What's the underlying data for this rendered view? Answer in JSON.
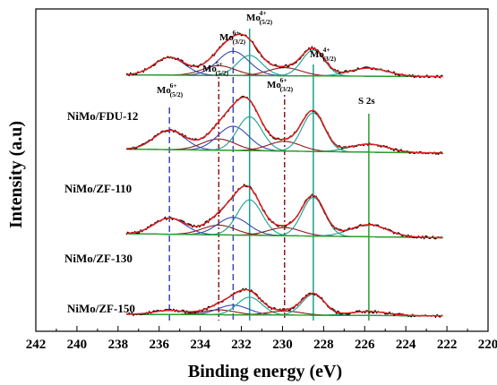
{
  "chart_data": {
    "type": "line",
    "xlabel": "Binding energy (eV)",
    "ylabel": "Intensity (a.u)",
    "xlim": [
      242,
      220
    ],
    "x_ticks": [
      242,
      240,
      238,
      236,
      234,
      232,
      230,
      228,
      226,
      224,
      222,
      220
    ],
    "grid": false,
    "samples": [
      {
        "name": "NiMo/FDU-12",
        "offset": 3.05
      },
      {
        "name": "NiMo/ZF-110",
        "offset": 2.1
      },
      {
        "name": "NiMo/ZF-130",
        "offset": 1.05
      },
      {
        "name": "NiMo/ZF-150",
        "offset": 0.08
      }
    ],
    "component_peaks": [
      {
        "label": "Mo6+(5/2)",
        "center": 235.5,
        "color": "#2a38a8"
      },
      {
        "label": "Mo5+(5/2)",
        "center": 233.1,
        "color": "#8b1a1a"
      },
      {
        "label": "Mo6+(3/2)",
        "center": 232.4,
        "color": "#2a38a8"
      },
      {
        "label": "Mo4+(5/2)",
        "center": 231.6,
        "color": "#1a9a8a"
      },
      {
        "label": "Mo6+(3/2)",
        "center": 229.9,
        "color": "#8b1a1a"
      },
      {
        "label": "Mo4+(3/2)",
        "center": 228.5,
        "color": "#1a9a8a"
      },
      {
        "label": "S 2s",
        "center": 225.8,
        "color": "#2f9a2f"
      }
    ],
    "peak_annotations": [
      {
        "main": "Mo",
        "sup": "6+",
        "sub": "(5/2)"
      },
      {
        "main": "Mo",
        "sup": "5+",
        "sub": "(5/2)"
      },
      {
        "main": "Mo",
        "sup": "6+",
        "sub": "(3/2)"
      },
      {
        "main": "Mo",
        "sup": "4+",
        "sub": "(5/2)"
      },
      {
        "main": "Mo",
        "sup": "6+",
        "sub": "(3/2)"
      },
      {
        "main": "Mo",
        "sup": "4+",
        "sub": "(3/2)"
      },
      {
        "main": "S 2s",
        "sup": "",
        "sub": ""
      }
    ],
    "series_colors": {
      "raw": "#000000",
      "fit": "#e02020",
      "background": "#2ca02c",
      "mo6": "#3848b8",
      "mo5": "#8b1a1a",
      "mo4": "#1aa090"
    }
  }
}
